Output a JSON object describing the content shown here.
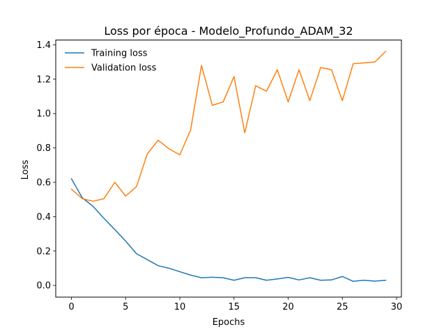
{
  "chart_data": {
    "type": "line",
    "title": "Loss por época - Modelo_Profundo_ADAM_32",
    "xlabel": "Epochs",
    "ylabel": "Loss",
    "xlim": [
      -1.45,
      30.45
    ],
    "ylim": [
      -0.068,
      1.428
    ],
    "xticks": [
      0,
      5,
      10,
      15,
      20,
      25,
      30
    ],
    "yticks": [
      0.0,
      0.2,
      0.4,
      0.6,
      0.8,
      1.0,
      1.2,
      1.4
    ],
    "grid": false,
    "legend_position": "upper-left",
    "x": [
      0,
      1,
      2,
      3,
      4,
      5,
      6,
      7,
      8,
      9,
      10,
      11,
      12,
      13,
      14,
      15,
      16,
      17,
      18,
      19,
      20,
      21,
      22,
      23,
      24,
      25,
      26,
      27,
      28,
      29
    ],
    "series": [
      {
        "name": "Training loss",
        "color": "#1f77b4",
        "values": [
          0.62,
          0.51,
          0.46,
          0.39,
          0.325,
          0.258,
          0.185,
          0.15,
          0.115,
          0.1,
          0.08,
          0.06,
          0.045,
          0.048,
          0.045,
          0.03,
          0.045,
          0.045,
          0.03,
          0.038,
          0.047,
          0.032,
          0.045,
          0.03,
          0.032,
          0.052,
          0.024,
          0.03,
          0.025,
          0.03
        ]
      },
      {
        "name": "Validation loss",
        "color": "#ff7f0e",
        "values": [
          0.56,
          0.505,
          0.49,
          0.505,
          0.6,
          0.52,
          0.575,
          0.765,
          0.845,
          0.795,
          0.76,
          0.905,
          1.28,
          1.048,
          1.068,
          1.215,
          0.888,
          1.162,
          1.13,
          1.255,
          1.068,
          1.255,
          1.075,
          1.268,
          1.255,
          1.075,
          1.29,
          1.295,
          1.3,
          1.362
        ]
      }
    ]
  }
}
